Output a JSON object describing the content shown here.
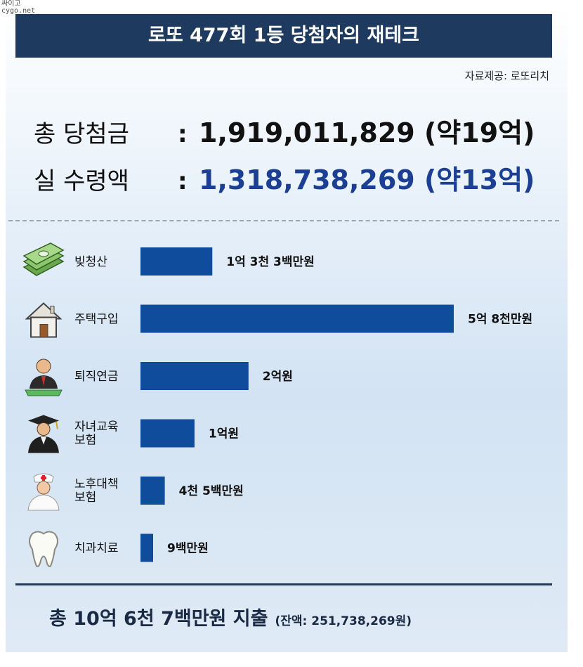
{
  "watermark": [
    "싸이고",
    "cygo.net"
  ],
  "header": {
    "title": "로또 477회 1등 당첨자의 재테크",
    "source": "자료제공: 로또리치"
  },
  "summary": {
    "total_label": "총 당첨금",
    "colon": ":",
    "total_value": "1,919,011,829 (약19억)",
    "net_label": "실 수령액",
    "net_value": "1,318,738,269 (약13억)"
  },
  "footer": {
    "main": "총 10억 6천 7백만원 지출",
    "remainder": "(잔액: 251,738,269원)"
  },
  "colors": {
    "banner": "#1f3a5f",
    "bar": "#0f4c9c",
    "net_value": "#1c3f94"
  },
  "chart_data": {
    "type": "bar",
    "orientation": "horizontal",
    "unit": "만원",
    "categories": [
      {
        "lines": [
          "빚청산"
        ],
        "icon": "money-stack-icon"
      },
      {
        "lines": [
          "주택구입"
        ],
        "icon": "house-icon"
      },
      {
        "lines": [
          "퇴직연금"
        ],
        "icon": "businessman-icon"
      },
      {
        "lines": [
          "자녀교육",
          "보험"
        ],
        "icon": "graduate-icon"
      },
      {
        "lines": [
          "노후대책",
          "보험"
        ],
        "icon": "nurse-icon"
      },
      {
        "lines": [
          "치과치료"
        ],
        "icon": "tooth-icon"
      }
    ],
    "values": [
      13300,
      58000,
      20000,
      10000,
      4500,
      900
    ],
    "value_labels": [
      "1억 3천 3백만원",
      "5억 8천만원",
      "2억원",
      "1억원",
      "4천 5백만원",
      "9백만원"
    ]
  }
}
